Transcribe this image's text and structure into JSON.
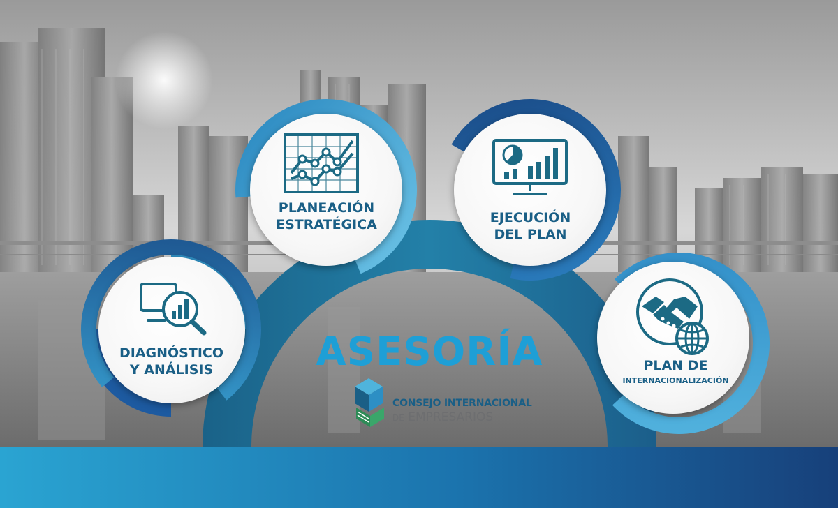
{
  "title": "ASESORÍA",
  "logo": {
    "line1": "CONSEJO INTERNACIONAL",
    "line2_prefix": "DE",
    "line2_main": "EMPRESARIOS"
  },
  "stages": [
    {
      "id": "diagnostico",
      "line1": "DIAGNÓSTICO",
      "line2": "Y ANÁLISIS",
      "icon": "monitor-magnifier-icon"
    },
    {
      "id": "planeacion",
      "line1": "PLANEACIÓN",
      "line2": "ESTRATÉGICA",
      "icon": "line-chart-icon"
    },
    {
      "id": "ejecucion",
      "line1": "EJECUCIÓN",
      "line2": "DEL PLAN",
      "icon": "dashboard-monitor-icon"
    },
    {
      "id": "internacionalizacion",
      "line1": "PLAN DE",
      "line2": "INTERNACIONALIZACIÓN",
      "icon": "handshake-globe-icon"
    }
  ],
  "colors": {
    "brand_dark": "#1a5f86",
    "brand_light": "#1e9fd6",
    "ring_light": "#4fb4dc",
    "ring_dark": "#1d5e95",
    "arch": "#1f6f94",
    "icon": "#1c6a84"
  }
}
